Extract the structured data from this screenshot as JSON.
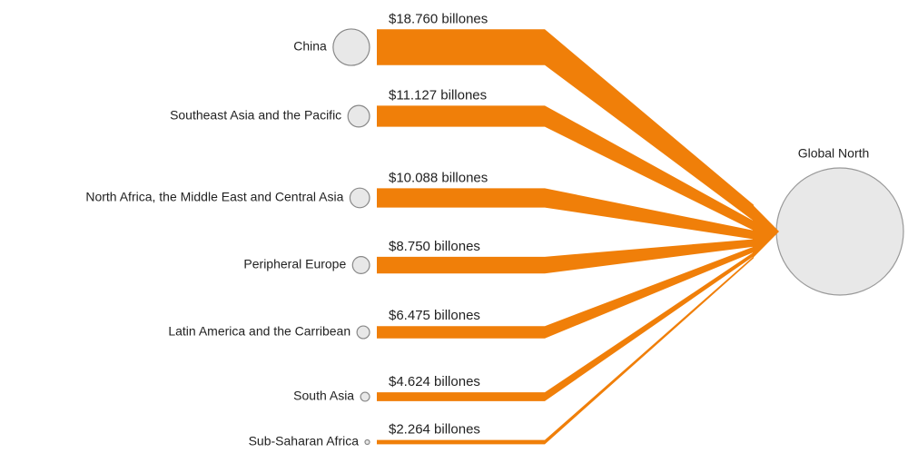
{
  "chart_data": {
    "type": "flow",
    "target": "Global North",
    "categories": [
      "China",
      "Southeast Asia and the Pacific",
      "North Africa, the Middle East and Central Asia",
      "Peripheral Europe",
      "Latin America and the Carribean",
      "South Asia",
      "Sub-Saharan Africa"
    ],
    "values": [
      18.76,
      11.127,
      10.088,
      8.75,
      6.475,
      4.624,
      2.264
    ],
    "value_labels": [
      "$18.760 billones",
      "$11.127 billones",
      "$10.088 billones",
      "$8.750 billones",
      "$6.475 billones",
      "$4.624 billones",
      "$2.264 billones"
    ],
    "color": "#f07f09"
  }
}
